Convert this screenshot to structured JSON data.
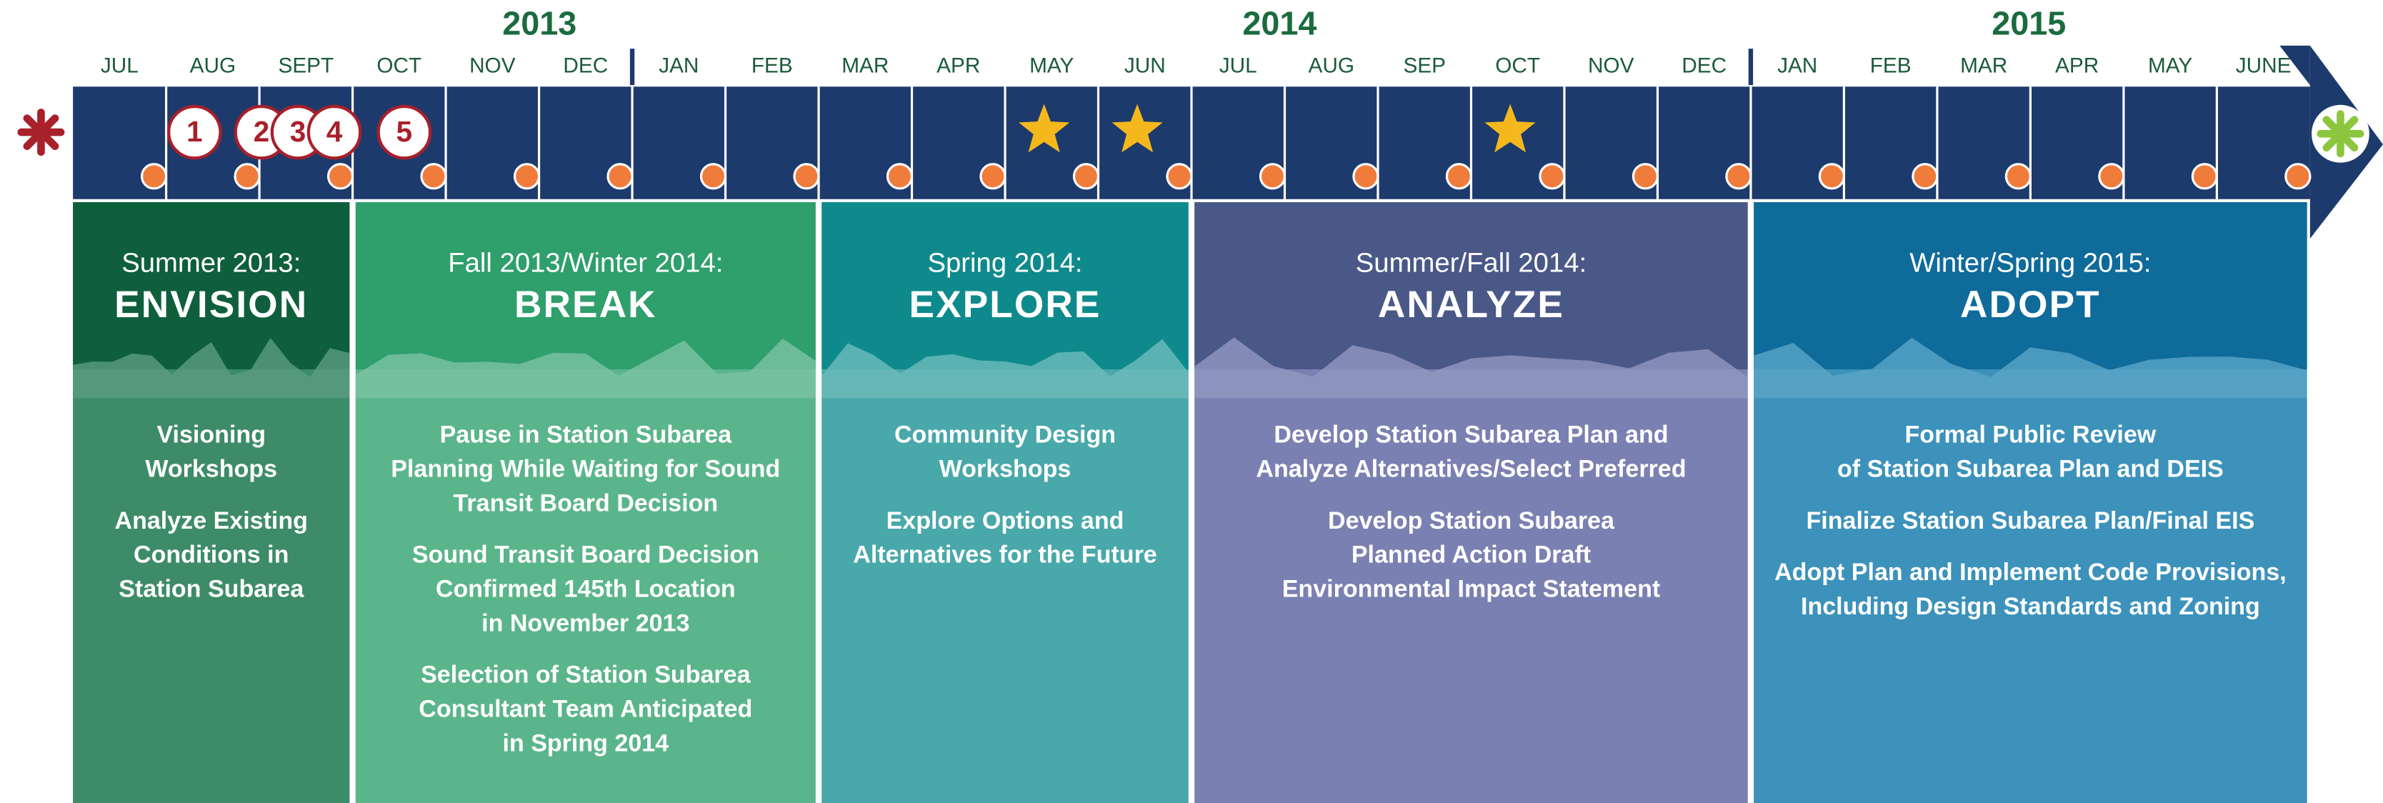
{
  "years": [
    "2013",
    "2014",
    "2015"
  ],
  "months": [
    "JUL",
    "AUG",
    "SEPT",
    "OCT",
    "NOV",
    "DEC",
    "JAN",
    "FEB",
    "MAR",
    "APR",
    "MAY",
    "JUN",
    "JUL",
    "AUG",
    "SEP",
    "OCT",
    "NOV",
    "DEC",
    "JAN",
    "FEB",
    "MAR",
    "APR",
    "MAY",
    "JUNE"
  ],
  "markers": [
    "1",
    "2",
    "3",
    "4",
    "5"
  ],
  "phases": [
    {
      "season": "Summer 2013:",
      "name": "ENVISION",
      "items": [
        [
          "Visioning",
          "Workshops"
        ],
        [
          "Analyze Existing",
          "Conditions in",
          "Station Subarea"
        ]
      ]
    },
    {
      "season": "Fall 2013/Winter 2014:",
      "name": "BREAK",
      "items": [
        [
          "Pause in Station Subarea",
          "Planning While Waiting for Sound",
          "Transit Board Decision"
        ],
        [
          "Sound Transit Board Decision",
          "Confirmed 145th Location",
          "in November 2013"
        ],
        [
          "Selection of Station Subarea",
          "Consultant Team Anticipated",
          "in Spring 2014"
        ]
      ]
    },
    {
      "season": "Spring 2014:",
      "name": "EXPLORE",
      "items": [
        [
          "Community Design",
          "Workshops"
        ],
        [
          "Explore Options and",
          "Alternatives for the Future"
        ]
      ]
    },
    {
      "season": "Summer/Fall 2014:",
      "name": "ANALYZE",
      "items": [
        [
          "Develop Station Subarea Plan and",
          "Analyze Alternatives/Select Preferred"
        ],
        [
          "Develop Station Subarea",
          "Planned Action Draft",
          "Environmental Impact Statement"
        ]
      ]
    },
    {
      "season": "Winter/Spring 2015:",
      "name": "ADOPT",
      "items": [
        [
          "Formal Public Review",
          "of Station Subarea Plan and DEIS"
        ],
        [
          "Finalize Station Subarea Plan/Final EIS"
        ],
        [
          "Adopt Plan and Implement Code Provisions,",
          "Including Design Standards and Zoning"
        ]
      ]
    }
  ]
}
